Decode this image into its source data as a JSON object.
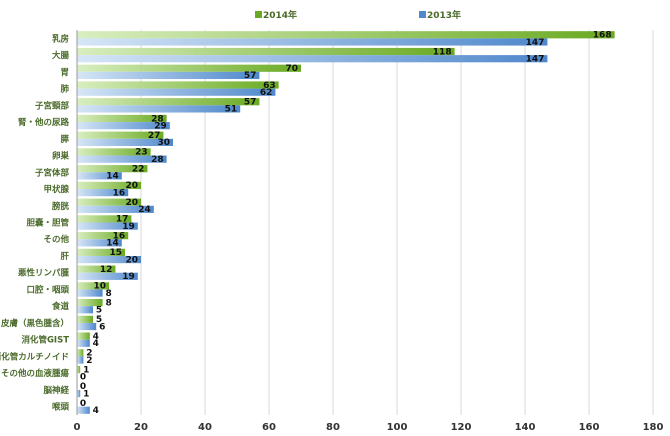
{
  "chart_data": {
    "type": "bar",
    "orientation": "horizontal",
    "categories": [
      "乳房",
      "大腸",
      "胃",
      "肺",
      "子宮頸部",
      "腎・他の尿路",
      "膵",
      "卵巣",
      "子宮体部",
      "甲状腺",
      "膀胱",
      "胆嚢・胆管",
      "その他",
      "肝",
      "悪性リンパ腫",
      "口腔・咽頭",
      "食道",
      "皮膚（黒色腫含）",
      "消化管GIST",
      "消化管カルチノイド",
      "その他の血液腫瘍",
      "脳神経",
      "喉頭"
    ],
    "series": [
      {
        "name": "2014年",
        "values": [
          168,
          118,
          70,
          63,
          57,
          28,
          27,
          23,
          22,
          20,
          20,
          17,
          16,
          15,
          12,
          10,
          8,
          5,
          4,
          2,
          1,
          0,
          0
        ],
        "color_start": "#d9eec0",
        "color_end": "#6aaa22"
      },
      {
        "name": "2013年",
        "values": [
          147,
          147,
          57,
          62,
          51,
          29,
          30,
          28,
          14,
          16,
          24,
          19,
          14,
          20,
          19,
          8,
          5,
          6,
          4,
          2,
          0,
          1,
          4
        ],
        "color_start": "#d6e6f6",
        "color_end": "#4f88cc"
      }
    ],
    "xlim": [
      0,
      180
    ],
    "xticks": [
      0,
      20,
      40,
      60,
      80,
      100,
      120,
      140,
      160,
      180
    ],
    "grid": true,
    "legend_position": "top-center"
  },
  "colors": {
    "grid": "#d9d9d9",
    "axis": "#9a9a9a",
    "category_text": "#4a6a2a"
  }
}
